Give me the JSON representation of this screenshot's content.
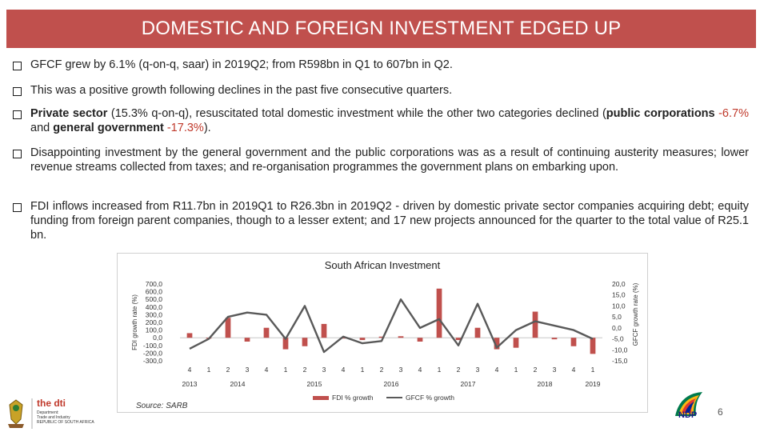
{
  "slide": {
    "title": "DOMESTIC AND FOREIGN INVESTMENT EDGED UP",
    "page_number": "6",
    "accent_color": "#c0504d",
    "source": "Source: SARB"
  },
  "bullets": [
    {
      "icon": "checkbox-bullet-icon",
      "text": "GFCF grew by 6.1% (q-on-q, saar) in 2019Q2; from R598bn in Q1 to 607bn in Q2."
    },
    {
      "icon": "checkbox-bullet-icon",
      "text": "This was a positive growth following declines in the past five consecutive quarters."
    },
    {
      "icon": "checkbox-bullet-icon",
      "p1": "Private sector",
      "p2": " (15.3% q-on-q), resuscitated total domestic investment while the other two categories declined (",
      "p3": "public corporations",
      "p4": " -6.7%",
      "p5": " and ",
      "p6": "general government",
      "p7": " -17.3%",
      "p8": ")."
    },
    {
      "icon": "checkbox-bullet-icon",
      "text": "Disappointing investment by the general government and the public corporations was as a result of continuing austerity measures; lower revenue streams collected from taxes; and re-organisation programmes the government plans on embarking upon."
    },
    {
      "icon": "checkbox-bullet-icon",
      "text": "FDI inflows increased from R11.7bn in 2019Q1 to R26.3bn in 2019Q2 - driven by domestic private sector companies acquiring debt; equity funding from foreign parent companies, though to a lesser extent; and 17 new projects announced for the quarter to the total value of R25.1 bn."
    }
  ],
  "logos": {
    "left_name": "the dti",
    "left_line1": "Department:",
    "left_line2": "Trade and Industry",
    "left_line3": "REPUBLIC OF SOUTH AFRICA",
    "right_name": "NDP"
  },
  "chart_data": {
    "type": "bar+line",
    "title": "South African Investment",
    "ylabel_left": "FDI growth rate (%)",
    "ylabel_right": "GFCF growth rate (%)",
    "ylim_left": [
      -300,
      700
    ],
    "ylim_right": [
      -15,
      20
    ],
    "left_ticks": [
      "700,0",
      "600,0",
      "500,0",
      "400,0",
      "300,0",
      "200,0",
      "100,0",
      "0,0",
      "-100,0",
      "-200,0",
      "-300,0"
    ],
    "right_ticks": [
      "20,0",
      "15,0",
      "10,0",
      "5,0",
      "0,0",
      "-5,0",
      "-10,0",
      "-15,0"
    ],
    "quarter_labels": [
      "4",
      "1",
      "2",
      "3",
      "4",
      "1",
      "2",
      "3",
      "4",
      "1",
      "2",
      "3",
      "4",
      "1",
      "2",
      "3",
      "4",
      "1",
      "2",
      "3",
      "4",
      "1"
    ],
    "year_labels": [
      {
        "label": "2013",
        "span": [
          0,
          0
        ]
      },
      {
        "label": "2014",
        "span": [
          1,
          4
        ]
      },
      {
        "label": "2015",
        "span": [
          5,
          8
        ]
      },
      {
        "label": "2016",
        "span": [
          9,
          12
        ]
      },
      {
        "label": "2017",
        "span": [
          13,
          16
        ]
      },
      {
        "label": "2018",
        "span": [
          17,
          20
        ]
      },
      {
        "label": "2019",
        "span": [
          21,
          21
        ]
      }
    ],
    "series": [
      {
        "name": "FDI % growth",
        "kind": "bar",
        "axis": "left",
        "color": "#c0504d",
        "values": [
          60,
          -5,
          260,
          -50,
          130,
          -150,
          -110,
          180,
          -5,
          -30,
          15,
          20,
          -50,
          640,
          -30,
          130,
          -150,
          -130,
          340,
          -20,
          -110,
          -210
        ]
      },
      {
        "name": "GFCF % growth",
        "kind": "line",
        "axis": "right",
        "color": "#595959",
        "values": [
          -9.5,
          -5,
          5,
          7,
          6,
          -5,
          10,
          -11,
          -4,
          -7,
          -6,
          13,
          0,
          4,
          -8,
          11,
          -9,
          -1,
          3,
          1,
          -1,
          -5
        ]
      }
    ],
    "legend": [
      "FDI % growth",
      "GFCF % growth"
    ],
    "legend_position": "bottom"
  }
}
